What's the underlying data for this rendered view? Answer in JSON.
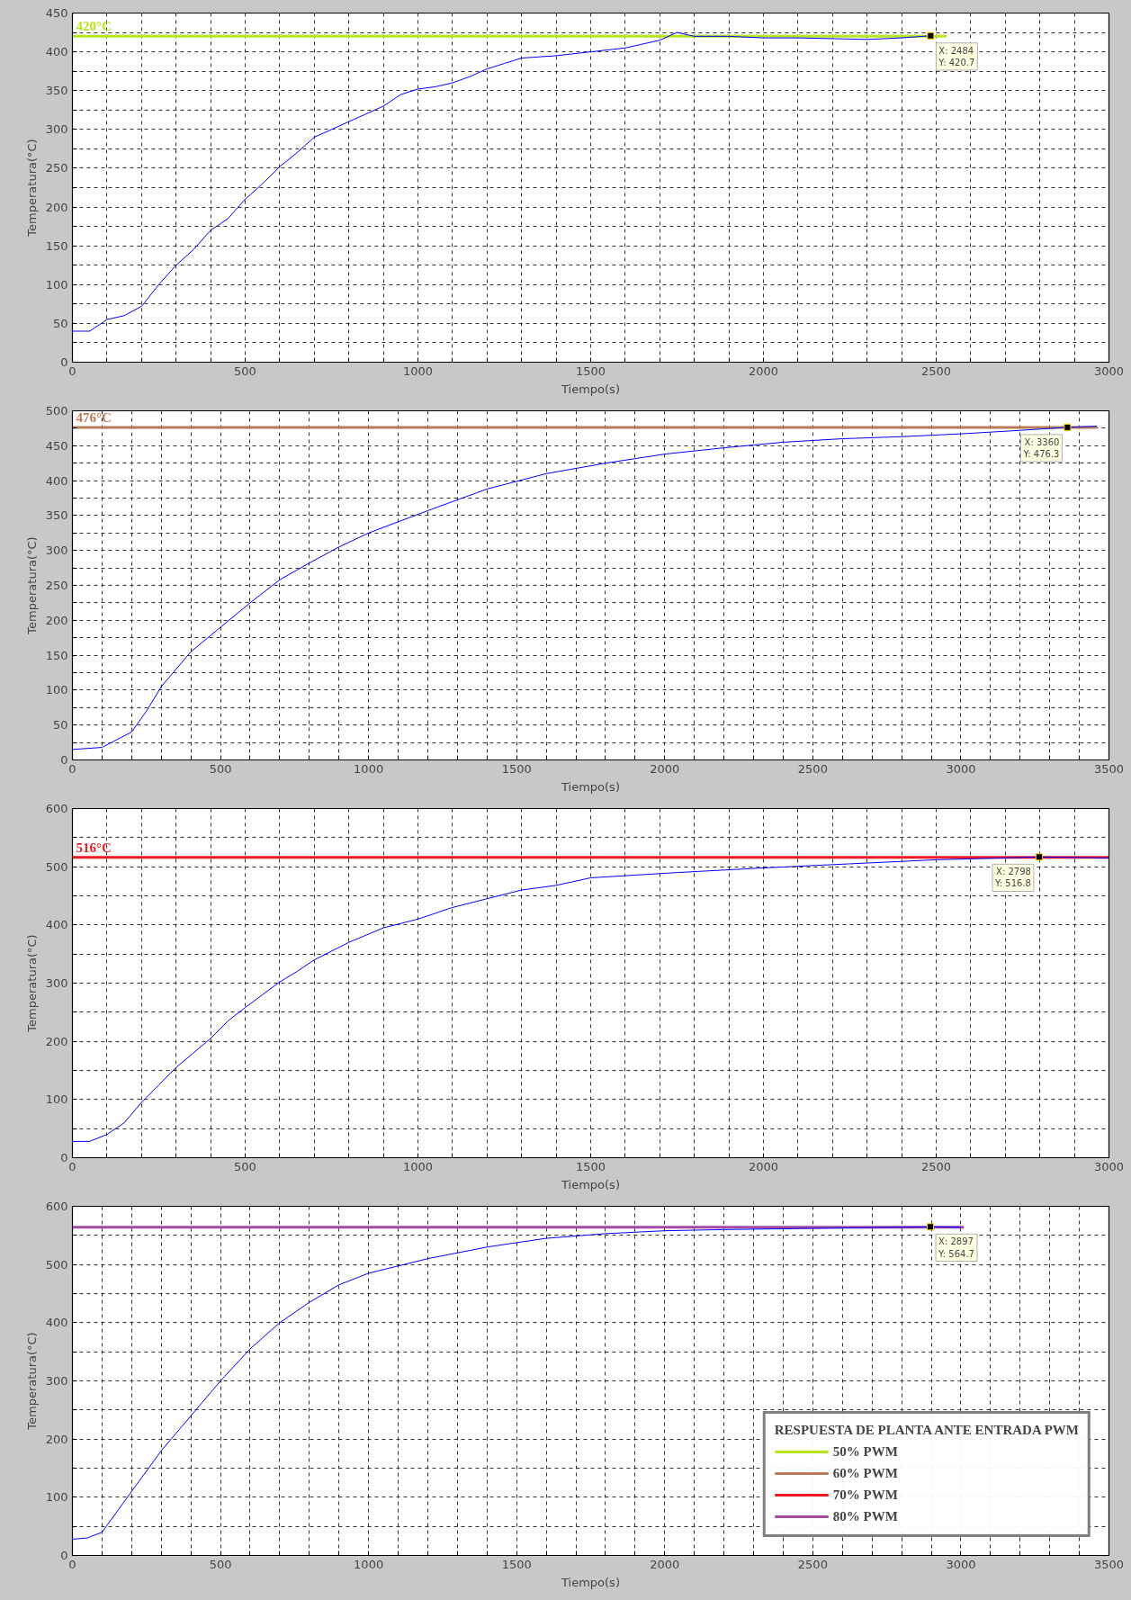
{
  "chart_data": [
    {
      "type": "line",
      "xlabel": "Tiempo(s)",
      "ylabel": "Temperatura(°C)",
      "grid": true,
      "legend": false,
      "xlim": [
        0,
        3000
      ],
      "ylim": [
        0,
        450
      ],
      "xticks": [
        0,
        {
          "value": 100,
          "label": null
        },
        {
          "value": 200,
          "label": null
        },
        {
          "value": 300,
          "label": null
        },
        {
          "value": 400,
          "label": null
        },
        500,
        {
          "value": 600,
          "label": null
        },
        {
          "value": 700,
          "label": null
        },
        {
          "value": 800,
          "label": null
        },
        {
          "value": 900,
          "label": null
        },
        1000,
        {
          "value": 1100,
          "label": null
        },
        {
          "value": 1200,
          "label": null
        },
        {
          "value": 1300,
          "label": null
        },
        {
          "value": 1400,
          "label": null
        },
        1500,
        {
          "value": 1600,
          "label": null
        },
        {
          "value": 1700,
          "label": null
        },
        {
          "value": 1800,
          "label": null
        },
        {
          "value": 1900,
          "label": null
        },
        2000,
        {
          "value": 2100,
          "label": null
        },
        {
          "value": 2200,
          "label": null
        },
        {
          "value": 2300,
          "label": null
        },
        {
          "value": 2400,
          "label": null
        },
        2500,
        {
          "value": 2600,
          "label": null
        },
        {
          "value": 2700,
          "label": null
        },
        {
          "value": 2800,
          "label": null
        },
        {
          "value": 2900,
          "label": null
        },
        3000
      ],
      "yticks": [
        0,
        {
          "value": 25,
          "label": null
        },
        50,
        {
          "value": 75,
          "label": null
        },
        100,
        {
          "value": 125,
          "label": null
        },
        150,
        {
          "value": 175,
          "label": null
        },
        200,
        {
          "value": 225,
          "label": null
        },
        250,
        {
          "value": 275,
          "label": null
        },
        300,
        {
          "value": 325,
          "label": null
        },
        350,
        {
          "value": 375,
          "label": null
        },
        400,
        {
          "value": 425,
          "label": null
        },
        450
      ],
      "series": [
        {
          "color": "#0000ff",
          "x": [
            0,
            50,
            100,
            150,
            200,
            250,
            300,
            350,
            400,
            450,
            500,
            550,
            600,
            650,
            700,
            750,
            800,
            850,
            900,
            950,
            1000,
            1050,
            1100,
            1150,
            1200,
            1250,
            1300,
            1400,
            1500,
            1600,
            1700,
            1750,
            1800,
            1900,
            2000,
            2100,
            2200,
            2300,
            2400,
            2484
          ],
          "values": [
            40,
            40,
            55,
            60,
            72,
            100,
            125,
            145,
            170,
            185,
            210,
            230,
            252,
            270,
            290,
            300,
            310,
            320,
            330,
            345,
            352,
            355,
            360,
            368,
            378,
            385,
            392,
            395,
            400,
            405,
            415,
            425,
            420,
            420,
            418,
            418,
            417,
            416,
            418,
            420.7
          ]
        },
        {
          "name": "420°C",
          "color": "#b5e61d",
          "x": [
            0,
            2530
          ],
          "values": [
            420,
            420
          ]
        }
      ],
      "annotations": [
        {
          "text": "X: 2484\nY: 420.7",
          "x": 2484,
          "y": 420.7
        }
      ]
    },
    {
      "type": "line",
      "xlabel": "Tiempo(s)",
      "ylabel": "Temperatura(°C)",
      "grid": true,
      "legend": false,
      "xlim": [
        0,
        3500
      ],
      "ylim": [
        0,
        500
      ],
      "xticks": [
        0,
        {
          "value": 100,
          "label": null
        },
        {
          "value": 200,
          "label": null
        },
        {
          "value": 300,
          "label": null
        },
        {
          "value": 400,
          "label": null
        },
        500,
        {
          "value": 600,
          "label": null
        },
        {
          "value": 700,
          "label": null
        },
        {
          "value": 800,
          "label": null
        },
        {
          "value": 900,
          "label": null
        },
        1000,
        {
          "value": 1100,
          "label": null
        },
        {
          "value": 1200,
          "label": null
        },
        {
          "value": 1300,
          "label": null
        },
        {
          "value": 1400,
          "label": null
        },
        1500,
        {
          "value": 1600,
          "label": null
        },
        {
          "value": 1700,
          "label": null
        },
        {
          "value": 1800,
          "label": null
        },
        {
          "value": 1900,
          "label": null
        },
        2000,
        {
          "value": 2100,
          "label": null
        },
        {
          "value": 2200,
          "label": null
        },
        {
          "value": 2300,
          "label": null
        },
        {
          "value": 2400,
          "label": null
        },
        2500,
        {
          "value": 2600,
          "label": null
        },
        {
          "value": 2700,
          "label": null
        },
        {
          "value": 2800,
          "label": null
        },
        {
          "value": 2900,
          "label": null
        },
        3000,
        {
          "value": 3100,
          "label": null
        },
        {
          "value": 3200,
          "label": null
        },
        {
          "value": 3300,
          "label": null
        },
        {
          "value": 3400,
          "label": null
        },
        3500
      ],
      "yticks": [
        0,
        {
          "value": 25,
          "label": null
        },
        50,
        {
          "value": 75,
          "label": null
        },
        100,
        {
          "value": 125,
          "label": null
        },
        150,
        {
          "value": 175,
          "label": null
        },
        200,
        {
          "value": 225,
          "label": null
        },
        250,
        {
          "value": 275,
          "label": null
        },
        300,
        {
          "value": 325,
          "label": null
        },
        350,
        {
          "value": 375,
          "label": null
        },
        400,
        {
          "value": 425,
          "label": null
        },
        450,
        {
          "value": 475,
          "label": null
        },
        500
      ],
      "series": [
        {
          "color": "#0000ff",
          "x": [
            0,
            100,
            200,
            250,
            300,
            400,
            500,
            600,
            700,
            800,
            900,
            1000,
            1200,
            1400,
            1600,
            1800,
            2000,
            2200,
            2400,
            2600,
            2800,
            3000,
            3200,
            3360,
            3460
          ],
          "values": [
            15,
            18,
            40,
            70,
            105,
            155,
            190,
            225,
            258,
            282,
            305,
            325,
            357,
            388,
            410,
            425,
            438,
            447,
            455,
            460,
            463,
            467,
            472,
            476.3,
            478
          ]
        },
        {
          "name": "476°C",
          "color": "#b97a57",
          "x": [
            0,
            3460
          ],
          "values": [
            476,
            476
          ]
        }
      ],
      "annotations": [
        {
          "text": "X: 3360\nY: 476.3",
          "x": 3360,
          "y": 476.3
        }
      ]
    },
    {
      "type": "line",
      "xlabel": "Tiempo(s)",
      "ylabel": "Temperatura(°C)",
      "grid": true,
      "legend": false,
      "xlim": [
        0,
        3000
      ],
      "ylim": [
        0,
        600
      ],
      "xticks": [
        0,
        {
          "value": 100,
          "label": null
        },
        {
          "value": 200,
          "label": null
        },
        {
          "value": 300,
          "label": null
        },
        {
          "value": 400,
          "label": null
        },
        500,
        {
          "value": 600,
          "label": null
        },
        {
          "value": 700,
          "label": null
        },
        {
          "value": 800,
          "label": null
        },
        {
          "value": 900,
          "label": null
        },
        1000,
        {
          "value": 1100,
          "label": null
        },
        {
          "value": 1200,
          "label": null
        },
        {
          "value": 1300,
          "label": null
        },
        {
          "value": 1400,
          "label": null
        },
        1500,
        {
          "value": 1600,
          "label": null
        },
        {
          "value": 1700,
          "label": null
        },
        {
          "value": 1800,
          "label": null
        },
        {
          "value": 1900,
          "label": null
        },
        2000,
        {
          "value": 2100,
          "label": null
        },
        {
          "value": 2200,
          "label": null
        },
        {
          "value": 2300,
          "label": null
        },
        {
          "value": 2400,
          "label": null
        },
        2500,
        {
          "value": 2600,
          "label": null
        },
        {
          "value": 2700,
          "label": null
        },
        {
          "value": 2800,
          "label": null
        },
        {
          "value": 2900,
          "label": null
        },
        3000
      ],
      "yticks": [
        0,
        {
          "value": 50,
          "label": null
        },
        100,
        {
          "value": 150,
          "label": null
        },
        200,
        {
          "value": 250,
          "label": null
        },
        300,
        {
          "value": 350,
          "label": null
        },
        400,
        {
          "value": 450,
          "label": null
        },
        500,
        {
          "value": 550,
          "label": null
        },
        600
      ],
      "series": [
        {
          "color": "#0000ff",
          "x": [
            0,
            50,
            100,
            150,
            200,
            250,
            300,
            350,
            400,
            450,
            500,
            550,
            600,
            650,
            700,
            800,
            900,
            1000,
            1100,
            1200,
            1300,
            1400,
            1500,
            1750,
            2000,
            2250,
            2500,
            2798,
            3000
          ],
          "values": [
            28,
            28,
            40,
            60,
            95,
            125,
            155,
            180,
            205,
            235,
            258,
            280,
            302,
            320,
            340,
            370,
            395,
            410,
            430,
            445,
            460,
            468,
            481,
            490,
            498,
            505,
            512,
            516.8,
            515
          ]
        },
        {
          "name": "516°C",
          "color": "#ed1c24",
          "x": [
            0,
            3000
          ],
          "values": [
            516,
            516
          ]
        }
      ],
      "annotations": [
        {
          "text": "X: 2798\nY: 516.8",
          "x": 2798,
          "y": 516.8
        }
      ]
    },
    {
      "type": "line",
      "xlabel": "Tiempo(s)",
      "ylabel": "Temperatura(°C)",
      "grid": true,
      "legend": "bottom right",
      "legend_title": "RESPUESTA DE PLANTA ANTE ENTRADA PWM",
      "xlim": [
        0,
        3500
      ],
      "ylim": [
        0,
        600
      ],
      "xticks": [
        0,
        {
          "value": 100,
          "label": null
        },
        {
          "value": 200,
          "label": null
        },
        {
          "value": 300,
          "label": null
        },
        {
          "value": 400,
          "label": null
        },
        500,
        {
          "value": 600,
          "label": null
        },
        {
          "value": 700,
          "label": null
        },
        {
          "value": 800,
          "label": null
        },
        {
          "value": 900,
          "label": null
        },
        1000,
        {
          "value": 1100,
          "label": null
        },
        {
          "value": 1200,
          "label": null
        },
        {
          "value": 1300,
          "label": null
        },
        {
          "value": 1400,
          "label": null
        },
        1500,
        {
          "value": 1600,
          "label": null
        },
        {
          "value": 1700,
          "label": null
        },
        {
          "value": 1800,
          "label": null
        },
        {
          "value": 1900,
          "label": null
        },
        2000,
        {
          "value": 2100,
          "label": null
        },
        {
          "value": 2200,
          "label": null
        },
        {
          "value": 2300,
          "label": null
        },
        {
          "value": 2400,
          "label": null
        },
        2500,
        {
          "value": 2600,
          "label": null
        },
        {
          "value": 2700,
          "label": null
        },
        {
          "value": 2800,
          "label": null
        },
        {
          "value": 2900,
          "label": null
        },
        3000,
        {
          "value": 3100,
          "label": null
        },
        {
          "value": 3200,
          "label": null
        },
        {
          "value": 3300,
          "label": null
        },
        {
          "value": 3400,
          "label": null
        },
        3500
      ],
      "yticks": [
        0,
        {
          "value": 50,
          "label": null
        },
        100,
        {
          "value": 150,
          "label": null
        },
        200,
        {
          "value": 250,
          "label": null
        },
        300,
        {
          "value": 350,
          "label": null
        },
        400,
        {
          "value": 450,
          "label": null
        },
        500,
        {
          "value": 550,
          "label": null
        },
        600
      ],
      "series": [
        {
          "color": "#0000ff",
          "x": [
            0,
            50,
            100,
            200,
            300,
            400,
            500,
            600,
            700,
            800,
            900,
            1000,
            1200,
            1400,
            1600,
            1800,
            2000,
            2200,
            2500,
            2897,
            3000
          ],
          "values": [
            28,
            30,
            40,
            110,
            180,
            240,
            300,
            355,
            400,
            435,
            465,
            485,
            510,
            530,
            545,
            553,
            558,
            560,
            562,
            564.7,
            564
          ]
        },
        {
          "name": "50% PWM",
          "color": "#b5e61d"
        },
        {
          "name": "60% PWM",
          "color": "#b97a57"
        },
        {
          "name": "70% PWM",
          "color": "#ed1c24"
        },
        {
          "name": "80% PWM",
          "color": "#a349a4",
          "x": [
            0,
            3010
          ],
          "values": [
            564,
            564
          ]
        }
      ],
      "annotations": [
        {
          "text": "X: 2897\nY: 564.7",
          "x": 2897,
          "y": 564.7
        }
      ]
    }
  ]
}
